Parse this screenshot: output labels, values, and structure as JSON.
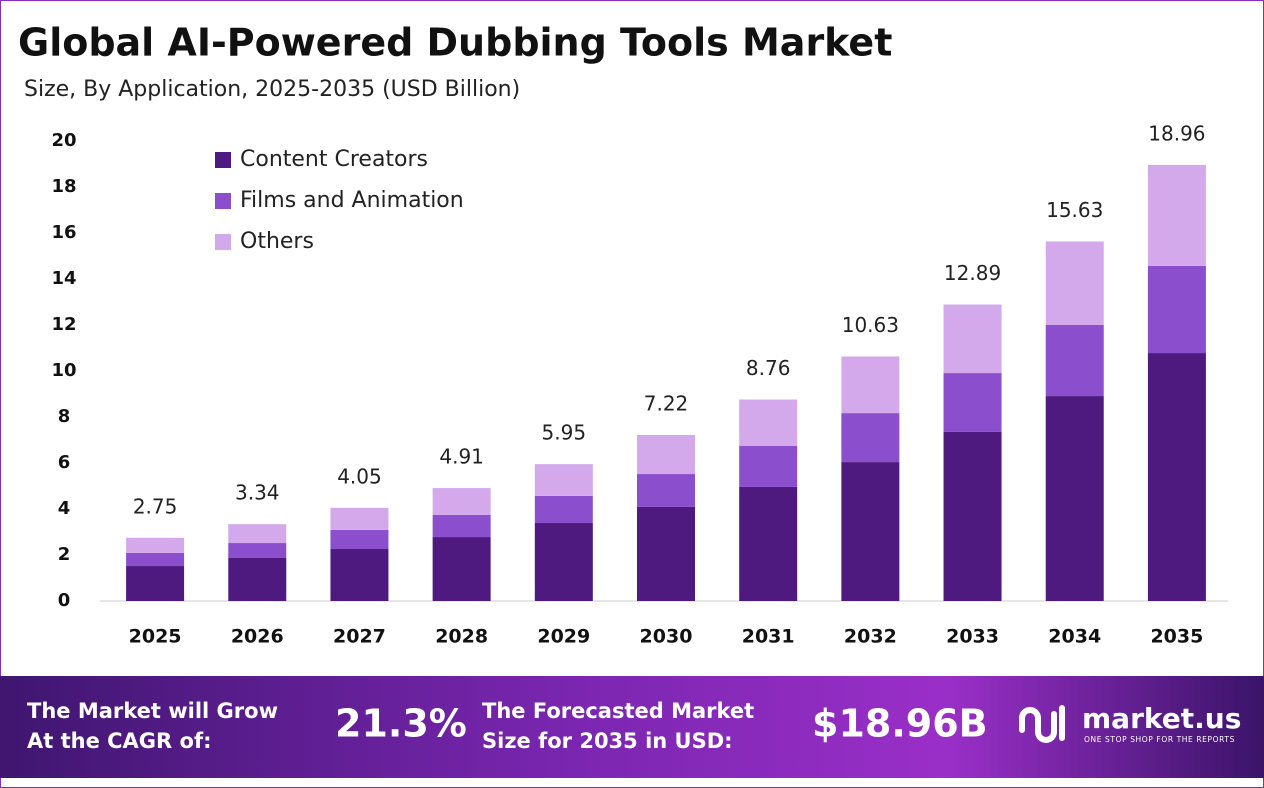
{
  "chart_data": {
    "type": "bar",
    "stacked": true,
    "title": "Global AI-Powered Dubbing Tools Market",
    "subtitle": "Size, By Application, 2025-2035 (USD Billion)",
    "categories": [
      "2025",
      "2026",
      "2027",
      "2028",
      "2029",
      "2030",
      "2031",
      "2032",
      "2033",
      "2034",
      "2035"
    ],
    "series": [
      {
        "name": "Content Creators",
        "color": "#4e1a80",
        "values": [
          1.52,
          1.87,
          2.26,
          2.78,
          3.39,
          4.09,
          4.96,
          6.04,
          7.35,
          8.91,
          10.78
        ]
      },
      {
        "name": "Films and Animation",
        "color": "#8b4fce",
        "values": [
          0.57,
          0.65,
          0.83,
          0.96,
          1.18,
          1.43,
          1.78,
          2.13,
          2.56,
          3.09,
          3.79
        ]
      },
      {
        "name": "Others",
        "color": "#d3a9ec",
        "values": [
          0.66,
          0.82,
          0.96,
          1.17,
          1.38,
          1.7,
          2.02,
          2.46,
          2.98,
          3.63,
          4.39
        ]
      }
    ],
    "totals": [
      2.75,
      3.34,
      4.05,
      4.91,
      5.95,
      7.22,
      8.76,
      10.63,
      12.89,
      15.63,
      18.96
    ],
    "ylim": [
      0,
      20
    ],
    "yticks": [
      0,
      2,
      4,
      6,
      8,
      10,
      12,
      14,
      16,
      18,
      20
    ],
    "grid": false,
    "legend": "top-left"
  },
  "footer": {
    "cagr_label": [
      "The Market will Grow",
      "At the CAGR of:"
    ],
    "cagr_value": "21.3%",
    "forecast_label": [
      "The Forecasted Market",
      "Size for 2035 in USD:"
    ],
    "forecast_value": "$18.96B",
    "brand": "market.us",
    "tagline": "ONE STOP SHOP FOR THE REPORTS"
  }
}
